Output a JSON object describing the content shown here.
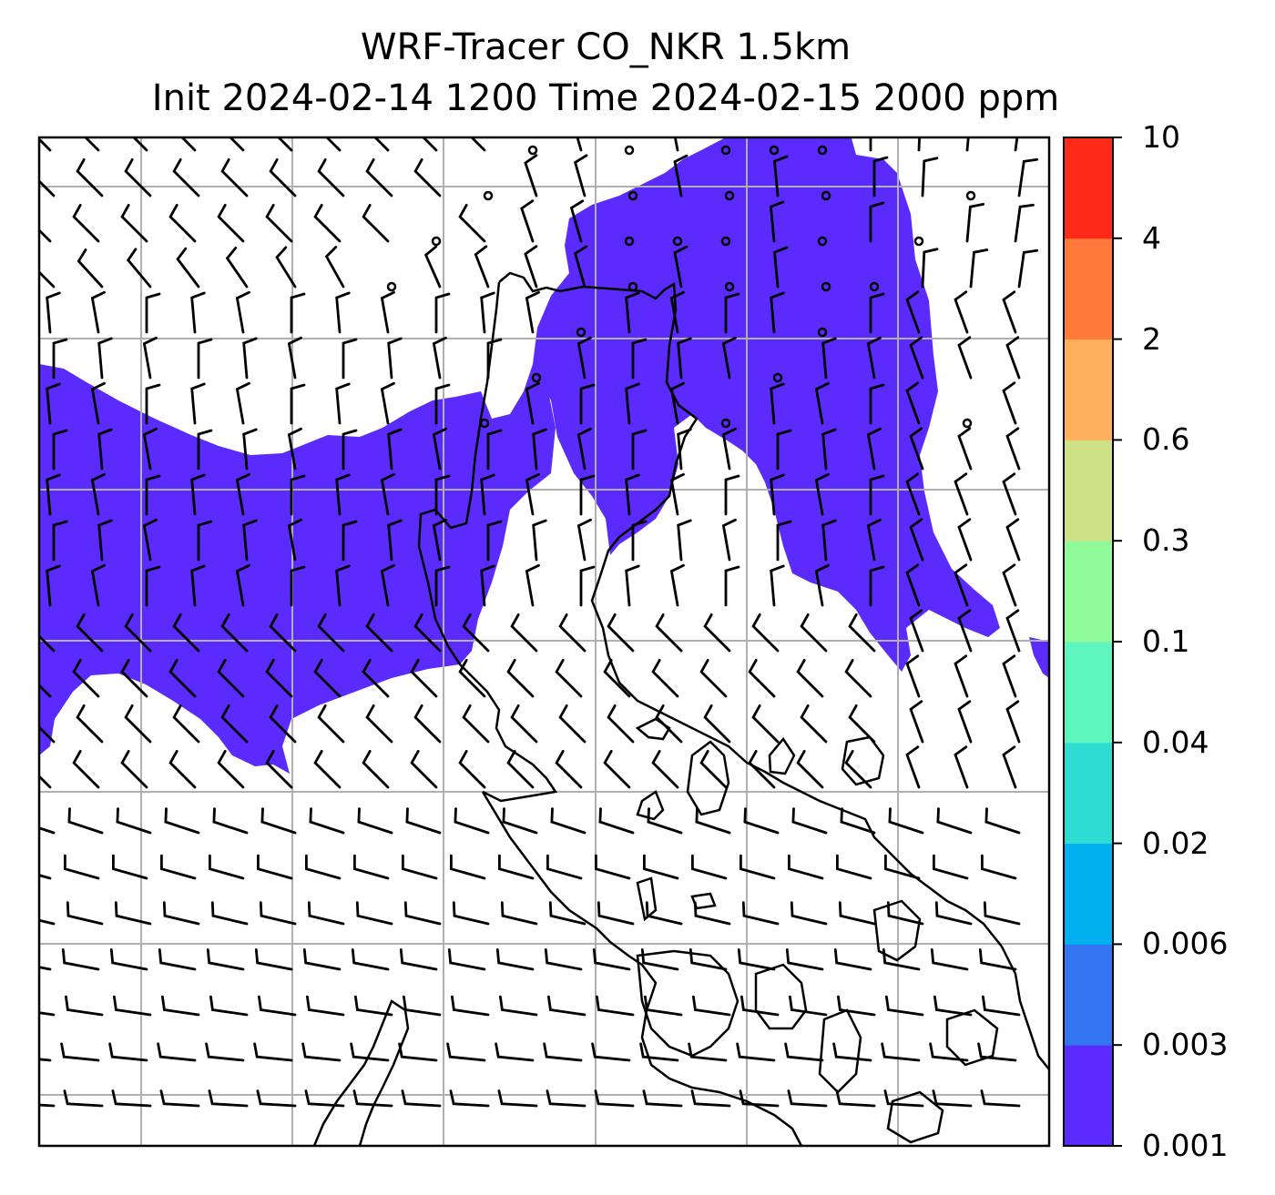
{
  "figure": {
    "title_line1": "WRF-Tracer CO_NKR 1.5km",
    "title_line2": "Init 2024-02-14 1200 Time 2024-02-15 2000 ppm"
  },
  "colorbar": {
    "levels": [
      "0.001",
      "0.003",
      "0.006",
      "0.02",
      "0.04",
      "0.1",
      "0.3",
      "0.6",
      "2",
      "4",
      "10"
    ],
    "colors": [
      "#5b2afc",
      "#3374f0",
      "#00b0ef",
      "#2fdcd4",
      "#5ef6be",
      "#8ffa9a",
      "#cde187",
      "#ffb05e",
      "#ff7a3b",
      "#ff2a1a"
    ]
  },
  "map_style": {
    "tracer_color": "#5b2afc",
    "gridline_color": "#b0b0b0",
    "coastline_color": "#000000",
    "barb_color": "#000000"
  }
}
